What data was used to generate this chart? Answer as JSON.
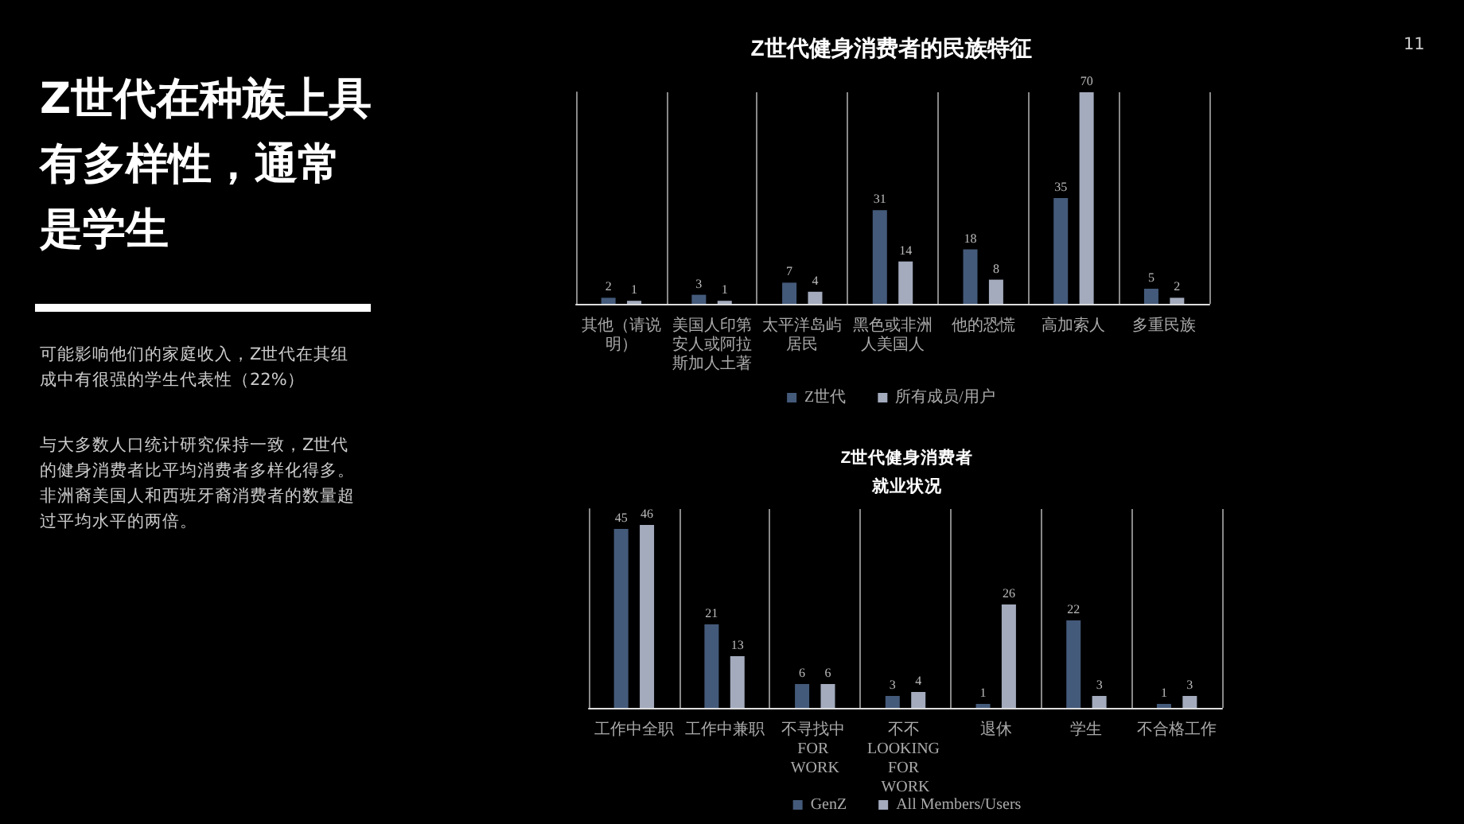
{
  "chart_data": [
    {
      "type": "other",
      "title": "Z世代在种族上具有多样性，通常是学生",
      "annotations": [
        "可能影响他们的家庭收入，Z世代在其组成中有很强的学生代表性（22%）",
        "与大多数人口统计研究保持一致，Z世代的健身消费者比平均消费者多样化得多。非洲裔美国人和西班牙裔消费者的数量超过平均水平的两倍。",
        "11"
      ]
    },
    {
      "type": "bar",
      "title": "Z世代健身消费者的民族特征",
      "categories": [
        "其他（请说明）",
        "美国人印第安人或阿拉斯加人土著",
        "太平洋岛屿居民",
        "黑色或非洲人美国人",
        "他的恐慌",
        "高加索人",
        "多重民族"
      ],
      "series": [
        {
          "name": "Z世代",
          "color": "#445a7a",
          "values": [
            2,
            3,
            7,
            31,
            18,
            35,
            5
          ]
        },
        {
          "name": "所有成员/用户",
          "color": "#a3abbd",
          "values": [
            1,
            1,
            4,
            14,
            8,
            70,
            2
          ]
        }
      ],
      "data_labels": true,
      "grid": "x",
      "legend": "bottom"
    },
    {
      "type": "bar",
      "title": "Z世代健身消费者就业状况",
      "categories": [
        "工作中全职",
        "工作中兼职",
        "不寻找中 FOR WORK",
        "不不 LOOKING FOR WORK",
        "退休",
        "学生",
        "不合格工作"
      ],
      "series": [
        {
          "name": "GenZ",
          "color": "#445a7a",
          "values": [
            45,
            21,
            6,
            3,
            1,
            22,
            1
          ]
        },
        {
          "name": "All Members/Users",
          "color": "#a3abbd",
          "values": [
            46,
            13,
            6,
            4,
            26,
            3,
            3
          ]
        }
      ],
      "data_labels": true,
      "grid": "x",
      "legend": "bottom"
    }
  ]
}
